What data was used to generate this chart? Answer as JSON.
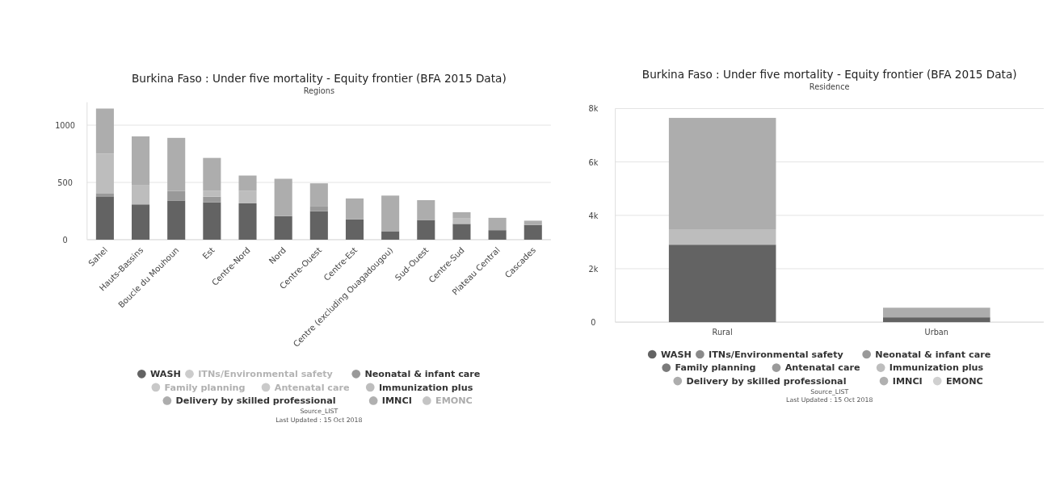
{
  "chart_data": [
    {
      "type": "bar",
      "stacked": true,
      "title": "Burkina Faso : Under five mortality - Equity frontier (BFA 2015 Data)",
      "subtitle": "Regions",
      "categories": [
        "Sahel",
        "Hauts-Bassins",
        "Boucle du Mouhoun",
        "Est",
        "Centre-Nord",
        "Nord",
        "Centre-Ouest",
        "Centre-Est",
        "Centre (excluding Ouagadougou)",
        "Sud-Ouest",
        "Centre-Sud",
        "Plateau Central",
        "Cascades"
      ],
      "ylim": [
        0,
        1200
      ],
      "yticks": [
        0,
        500,
        1000
      ],
      "grid": "y",
      "legend": "bottom",
      "series": [
        {
          "name": "WASH",
          "color": "#636363",
          "values": [
            378,
            308,
            342,
            326,
            317,
            206,
            249,
            178,
            74,
            172,
            138,
            83,
            129
          ]
        },
        {
          "name": "ITNs/Environmental safety",
          "color": "#cccccc",
          "values": [
            null,
            null,
            null,
            null,
            null,
            null,
            null,
            null,
            null,
            null,
            null,
            null,
            null
          ]
        },
        {
          "name": "Neonatal & infant care",
          "color": "#999999",
          "values": [
            28,
            0,
            83,
            49,
            0,
            0,
            40,
            0,
            0,
            0,
            0,
            0,
            0
          ]
        },
        {
          "name": "Family planning",
          "color": "#c8c8c8",
          "values": [
            null,
            null,
            null,
            null,
            null,
            null,
            null,
            null,
            null,
            null,
            null,
            null,
            null
          ]
        },
        {
          "name": "Antenatal care",
          "color": "#cacaca",
          "values": [
            null,
            null,
            null,
            null,
            null,
            null,
            null,
            null,
            null,
            null,
            null,
            null,
            null
          ]
        },
        {
          "name": "Immunization plus",
          "color": "#bdbdbd",
          "values": [
            345,
            166,
            0,
            53,
            111,
            0,
            0,
            0,
            0,
            0,
            47,
            0,
            0
          ]
        },
        {
          "name": "Delivery by skilled professional",
          "color": "#adadad",
          "values": [
            394,
            428,
            464,
            286,
            132,
            326,
            203,
            182,
            311,
            173,
            55,
            108,
            37
          ]
        },
        {
          "name": "IMNCI",
          "color": "#b0b0b0",
          "values": [
            0,
            0,
            0,
            0,
            0,
            0,
            0,
            0,
            0,
            0,
            0,
            0,
            0
          ]
        },
        {
          "name": "EMONC",
          "color": "#c4c4c4",
          "values": [
            null,
            null,
            null,
            null,
            null,
            null,
            null,
            null,
            null,
            null,
            null,
            null,
            null
          ]
        }
      ],
      "annotations": [
        "Source_LIST",
        "Last Updated : 15 Oct 2018"
      ]
    },
    {
      "type": "bar",
      "stacked": true,
      "title": "Burkina Faso : Under five mortality - Equity frontier (BFA 2015 Data)",
      "subtitle": "Residence",
      "categories": [
        "Rural",
        "Urban"
      ],
      "ylim": [
        0,
        8000
      ],
      "yticks": [
        0,
        {
          "value": 2000,
          "label": "2k"
        },
        {
          "value": 4000,
          "label": "4k"
        },
        {
          "value": 6000,
          "label": "6k"
        },
        {
          "value": 8000,
          "label": "8k"
        }
      ],
      "grid": "y",
      "legend": "bottom",
      "series": [
        {
          "name": "WASH",
          "color": "#636363",
          "values": [
            2900,
            180
          ]
        },
        {
          "name": "ITNs/Environmental safety",
          "color": "#8a8a8a",
          "values": [
            0,
            0
          ]
        },
        {
          "name": "Neonatal & infant care",
          "color": "#999999",
          "values": [
            0,
            0
          ]
        },
        {
          "name": "Family planning",
          "color": "#7a7a7a",
          "values": [
            0,
            0
          ]
        },
        {
          "name": "Antenatal care",
          "color": "#9a9a9a",
          "values": [
            0,
            0
          ]
        },
        {
          "name": "Immunization plus",
          "color": "#bdbdbd",
          "values": [
            580,
            0
          ]
        },
        {
          "name": "Delivery by skilled professional",
          "color": "#adadad",
          "values": [
            4170,
            360
          ]
        },
        {
          "name": "IMNCI",
          "color": "#b0b0b0",
          "values": [
            0,
            0
          ]
        },
        {
          "name": "EMONC",
          "color": "#d0d0d0",
          "values": [
            0,
            0
          ]
        }
      ],
      "annotations": [
        "Source_LIST",
        "Last Updated : 15 Oct 2018"
      ]
    }
  ]
}
